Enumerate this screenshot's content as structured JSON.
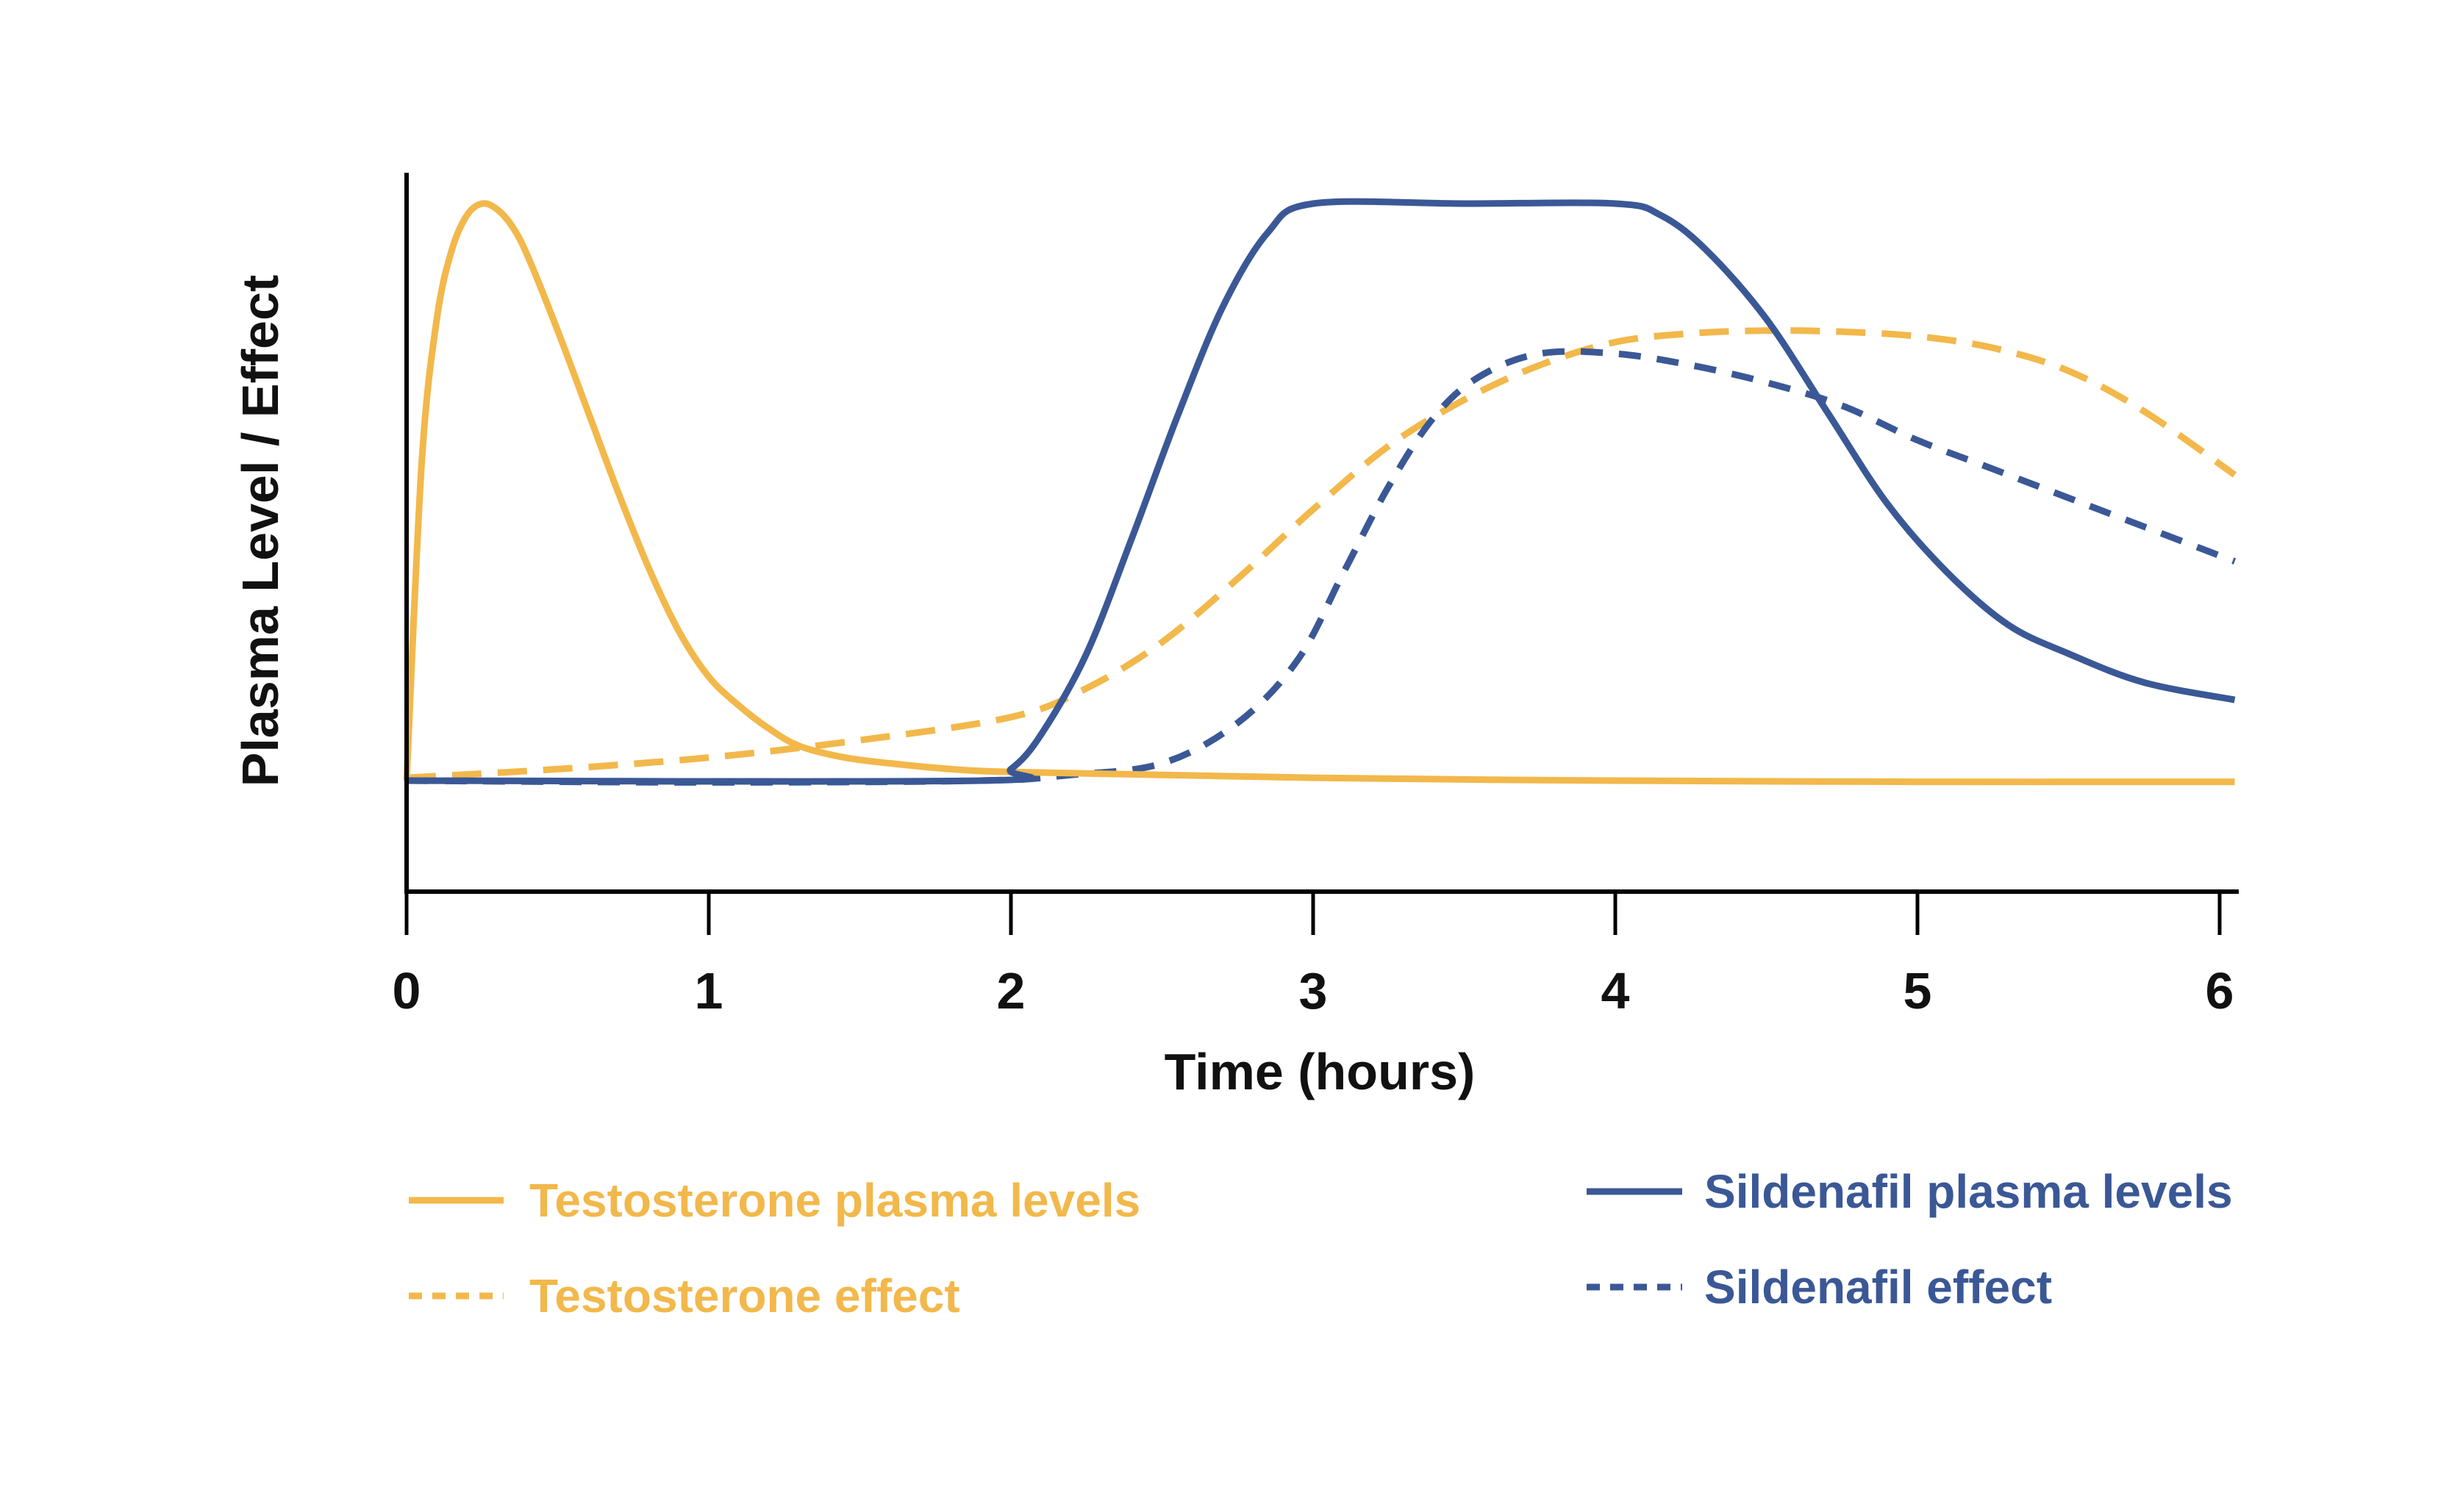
{
  "chart_data": {
    "type": "line",
    "title": "",
    "xlabel": "Time (hours)",
    "ylabel": "Plasma Level / Effect",
    "xlim": [
      0,
      6.05
    ],
    "ylim": [
      -0.19,
      1.05
    ],
    "x_ticks": [
      0,
      1,
      2,
      3,
      4,
      5,
      6
    ],
    "x_tick_labels": [
      "0",
      "1",
      "2",
      "3",
      "4",
      "5",
      "6"
    ],
    "y_ticks": [],
    "grid": false,
    "legend_position": "bottom",
    "series": [
      {
        "name": "Testosterone plasma levels",
        "color": "#F2B84B",
        "style": "solid",
        "x": [
          0,
          0.05,
          0.1,
          0.15,
          0.2,
          0.25,
          0.3,
          0.35,
          0.4,
          0.5,
          0.6,
          0.7,
          0.8,
          0.9,
          1.0,
          1.1,
          1.2,
          1.3,
          1.45,
          1.6,
          1.8,
          2.0,
          2.5,
          3.0,
          3.5,
          4.0,
          5.0,
          6.05
        ],
        "y": [
          0,
          0.55,
          0.8,
          0.92,
          0.98,
          1.0,
          0.99,
          0.96,
          0.91,
          0.78,
          0.64,
          0.5,
          0.37,
          0.26,
          0.18,
          0.13,
          0.09,
          0.06,
          0.04,
          0.03,
          0.02,
          0.015,
          0.01,
          0.005,
          0.002,
          0.0,
          -0.002,
          -0.002
        ]
      },
      {
        "name": "Testosterone effect",
        "color": "#F2B84B",
        "style": "dashed",
        "x": [
          0,
          0.5,
          1.0,
          1.5,
          2.0,
          2.25,
          2.5,
          2.75,
          3.0,
          3.25,
          3.5,
          3.75,
          4.0,
          4.25,
          4.5,
          4.75,
          5.0,
          5.25,
          5.5,
          5.75,
          6.05
        ],
        "y": [
          0.005,
          0.02,
          0.04,
          0.07,
          0.11,
          0.16,
          0.24,
          0.35,
          0.47,
          0.58,
          0.66,
          0.72,
          0.76,
          0.775,
          0.78,
          0.778,
          0.77,
          0.75,
          0.71,
          0.64,
          0.53
        ]
      },
      {
        "name": "Sildenafil plasma levels",
        "color": "#3B5896",
        "style": "solid",
        "x": [
          0,
          1.9,
          2.0,
          2.1,
          2.25,
          2.4,
          2.55,
          2.7,
          2.85,
          3.0,
          3.5,
          4.0,
          4.15,
          4.3,
          4.5,
          4.7,
          4.9,
          5.1,
          5.3,
          5.5,
          5.75,
          6.05
        ],
        "y": [
          0,
          0,
          0.02,
          0.08,
          0.22,
          0.42,
          0.63,
          0.82,
          0.95,
          1.0,
          1.0,
          1.0,
          0.98,
          0.92,
          0.8,
          0.64,
          0.48,
          0.36,
          0.27,
          0.22,
          0.17,
          0.14
        ]
      },
      {
        "name": "Sildenafil effect",
        "color": "#3B5896",
        "style": "dotted",
        "x": [
          0,
          1.0,
          1.9,
          2.2,
          2.5,
          2.75,
          2.95,
          3.1,
          3.25,
          3.4,
          3.55,
          3.75,
          4.0,
          4.25,
          4.5,
          4.75,
          5.0,
          5.25,
          5.5,
          5.75,
          6.05
        ],
        "y": [
          0,
          -0.003,
          0.0,
          0.01,
          0.03,
          0.1,
          0.21,
          0.36,
          0.51,
          0.63,
          0.7,
          0.74,
          0.74,
          0.72,
          0.69,
          0.65,
          0.59,
          0.54,
          0.49,
          0.44,
          0.38
        ]
      }
    ],
    "legend": [
      {
        "label": "Testosterone plasma levels",
        "color": "#F2B84B",
        "style": "solid"
      },
      {
        "label": "Testosterone effect",
        "color": "#F2B84B",
        "style": "dashed"
      },
      {
        "label": "Sildenafil plasma levels",
        "color": "#3B5896",
        "style": "solid"
      },
      {
        "label": "Sildenafil effect",
        "color": "#3B5896",
        "style": "dotted"
      }
    ]
  },
  "colors": {
    "testosterone": "#F2B84B",
    "sildenafil": "#3B5896",
    "axis": "#000000"
  }
}
